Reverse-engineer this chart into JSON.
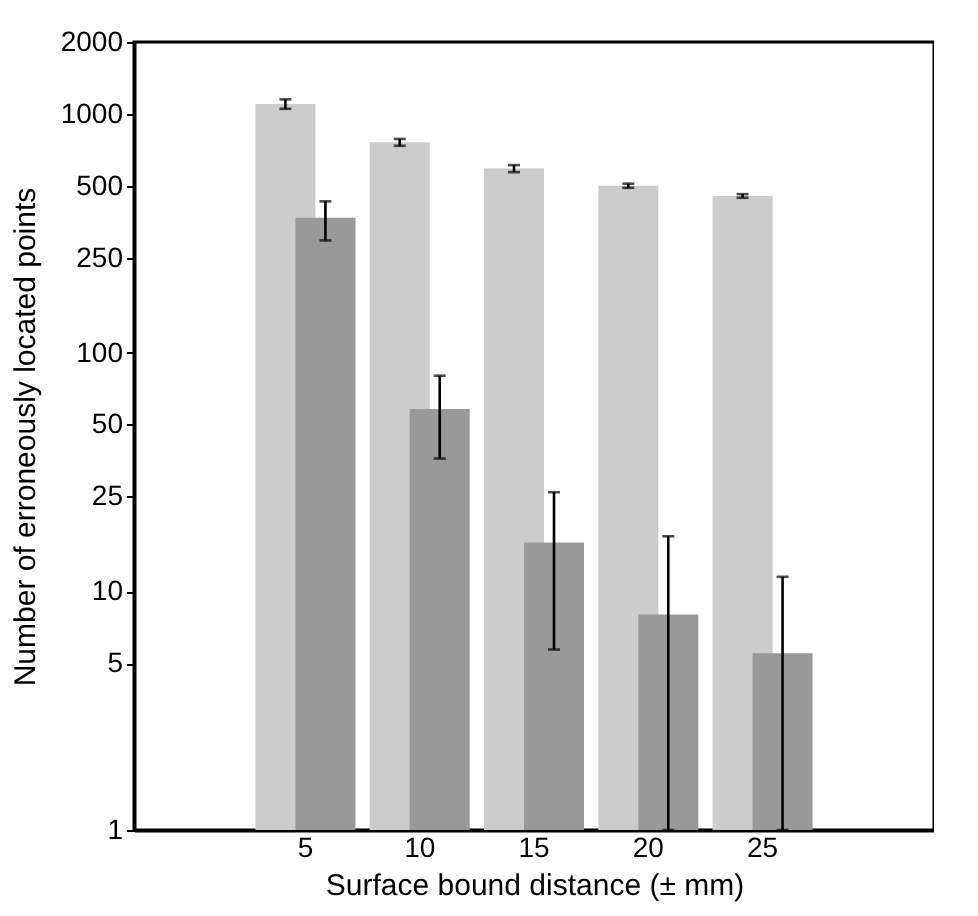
{
  "chart_data": {
    "type": "bar",
    "xlabel": "Surface bound distance (± mm)",
    "ylabel": "Number of erroneously located points",
    "categories": [
      "5",
      "10",
      "15",
      "20",
      "25"
    ],
    "series": [
      {
        "color": "#cccccc",
        "values": [
          1100,
          760,
          590,
          500,
          453
        ],
        "errors": [
          [
            1050,
            1150
          ],
          [
            735,
            785
          ],
          [
            570,
            610
          ],
          [
            490,
            510
          ],
          [
            445,
            461
          ]
        ]
      },
      {
        "color": "#999999",
        "values": [
          367,
          58,
          16,
          8,
          5.5
        ],
        "errors": [
          [
            295,
            430
          ],
          [
            36,
            80
          ],
          [
            5.7,
            26
          ],
          [
            1,
            17
          ],
          [
            1,
            11.5
          ]
        ]
      }
    ],
    "log": "y",
    "ylim": [
      1,
      2000
    ],
    "yticks": [
      1,
      5,
      10,
      25,
      50,
      100,
      250,
      500,
      1000,
      2000
    ],
    "grid": false
  }
}
